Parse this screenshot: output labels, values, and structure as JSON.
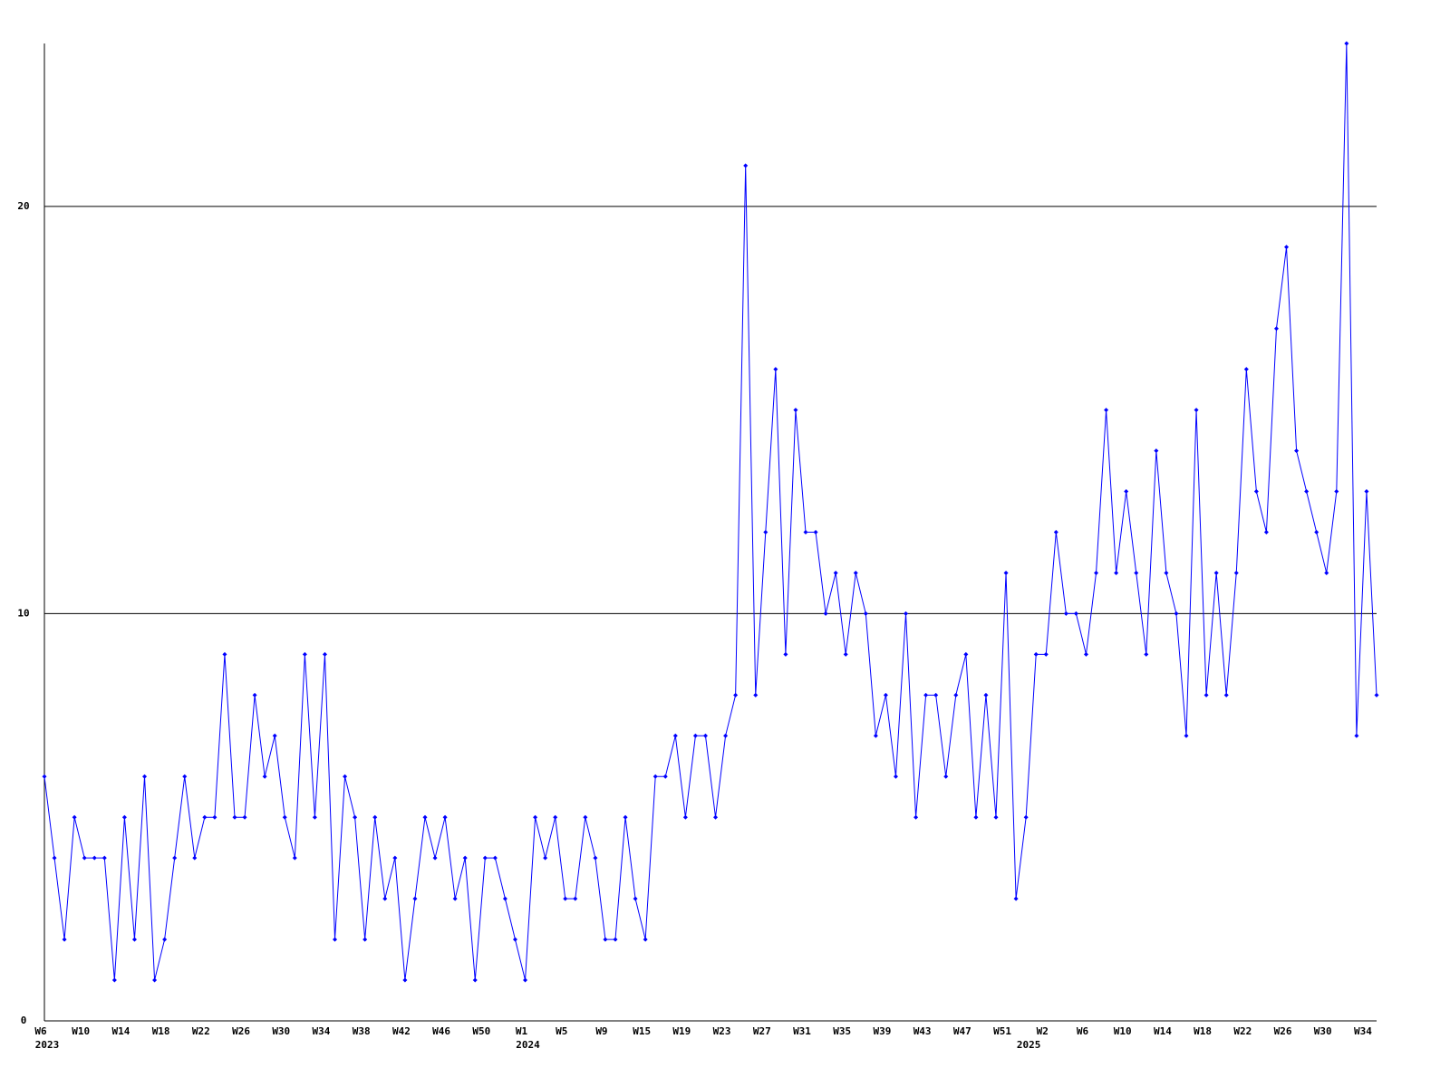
{
  "chart_data": {
    "type": "line",
    "categories": [
      "W6",
      null,
      null,
      null,
      "W10",
      null,
      null,
      null,
      "W14",
      null,
      null,
      null,
      "W18",
      null,
      null,
      null,
      "W22",
      null,
      null,
      null,
      "W26",
      null,
      null,
      null,
      "W30",
      null,
      null,
      null,
      "W34",
      null,
      null,
      null,
      "W38",
      null,
      null,
      null,
      "W42",
      null,
      null,
      null,
      "W46",
      null,
      null,
      null,
      "W50",
      null,
      null,
      null,
      "W1",
      null,
      null,
      null,
      "W5",
      null,
      null,
      null,
      "W9",
      null,
      null,
      null,
      "W15",
      null,
      null,
      null,
      "W19",
      null,
      null,
      null,
      "W23",
      null,
      null,
      null,
      "W27",
      null,
      null,
      null,
      "W31",
      null,
      null,
      null,
      "W35",
      null,
      null,
      null,
      "W39",
      null,
      null,
      null,
      "W43",
      null,
      null,
      null,
      "W47",
      null,
      null,
      null,
      "W51",
      null,
      null,
      null,
      "W2",
      null,
      null,
      null,
      "W6",
      null,
      null,
      null,
      "W10",
      null,
      null,
      null,
      "W14",
      null,
      null,
      null,
      "W18",
      null,
      null,
      null,
      "W22",
      null,
      null,
      null,
      "W26",
      null,
      null,
      null,
      "W30",
      null,
      null,
      null,
      "W34",
      null
    ],
    "category_groups": [
      "2023",
      null,
      null,
      null,
      null,
      null,
      null,
      null,
      null,
      null,
      null,
      null,
      null,
      null,
      null,
      null,
      null,
      null,
      null,
      null,
      null,
      null,
      null,
      null,
      null,
      null,
      null,
      null,
      null,
      null,
      null,
      null,
      null,
      null,
      null,
      null,
      null,
      null,
      null,
      null,
      null,
      null,
      null,
      null,
      null,
      null,
      null,
      null,
      "2024",
      null,
      null,
      null,
      null,
      null,
      null,
      null,
      null,
      null,
      null,
      null,
      null,
      null,
      null,
      null,
      null,
      null,
      null,
      null,
      null,
      null,
      null,
      null,
      null,
      null,
      null,
      null,
      null,
      null,
      null,
      null,
      null,
      null,
      null,
      null,
      null,
      null,
      null,
      null,
      null,
      null,
      null,
      null,
      null,
      null,
      null,
      null,
      null,
      null,
      "2025",
      null,
      null,
      null,
      null,
      null,
      null,
      null,
      null,
      null,
      null,
      null,
      null,
      null,
      null,
      null,
      null,
      null,
      null,
      null,
      null,
      null,
      null,
      null,
      null,
      null,
      null,
      null,
      null,
      null,
      null,
      null,
      null,
      null
    ],
    "values": [
      6,
      4,
      2,
      5,
      4,
      4,
      4,
      1,
      5,
      2,
      6,
      1,
      2,
      4,
      6,
      4,
      5,
      5,
      9,
      5,
      5,
      8,
      6,
      7,
      5,
      4,
      9,
      5,
      9,
      2,
      6,
      5,
      2,
      5,
      3,
      4,
      1,
      3,
      5,
      4,
      5,
      3,
      4,
      1,
      4,
      4,
      3,
      2,
      1,
      5,
      4,
      5,
      3,
      3,
      5,
      4,
      2,
      2,
      5,
      3,
      2,
      6,
      6,
      7,
      5,
      7,
      7,
      5,
      7,
      8,
      21,
      8,
      12,
      16,
      9,
      15,
      12,
      12,
      10,
      11,
      9,
      11,
      10,
      7,
      8,
      6,
      10,
      5,
      8,
      8,
      6,
      8,
      9,
      5,
      8,
      5,
      11,
      3,
      5,
      9,
      9,
      12,
      10,
      10,
      9,
      11,
      15,
      11,
      13,
      11,
      9,
      14,
      11,
      10,
      7,
      15,
      8,
      11,
      8,
      11,
      16,
      13,
      12,
      17,
      19,
      14,
      13,
      12,
      11,
      13,
      24,
      7,
      13,
      8
    ],
    "color": "#0000ff",
    "ylim": [
      0,
      24
    ],
    "yticks": [
      0,
      10,
      20
    ],
    "grid": true
  }
}
